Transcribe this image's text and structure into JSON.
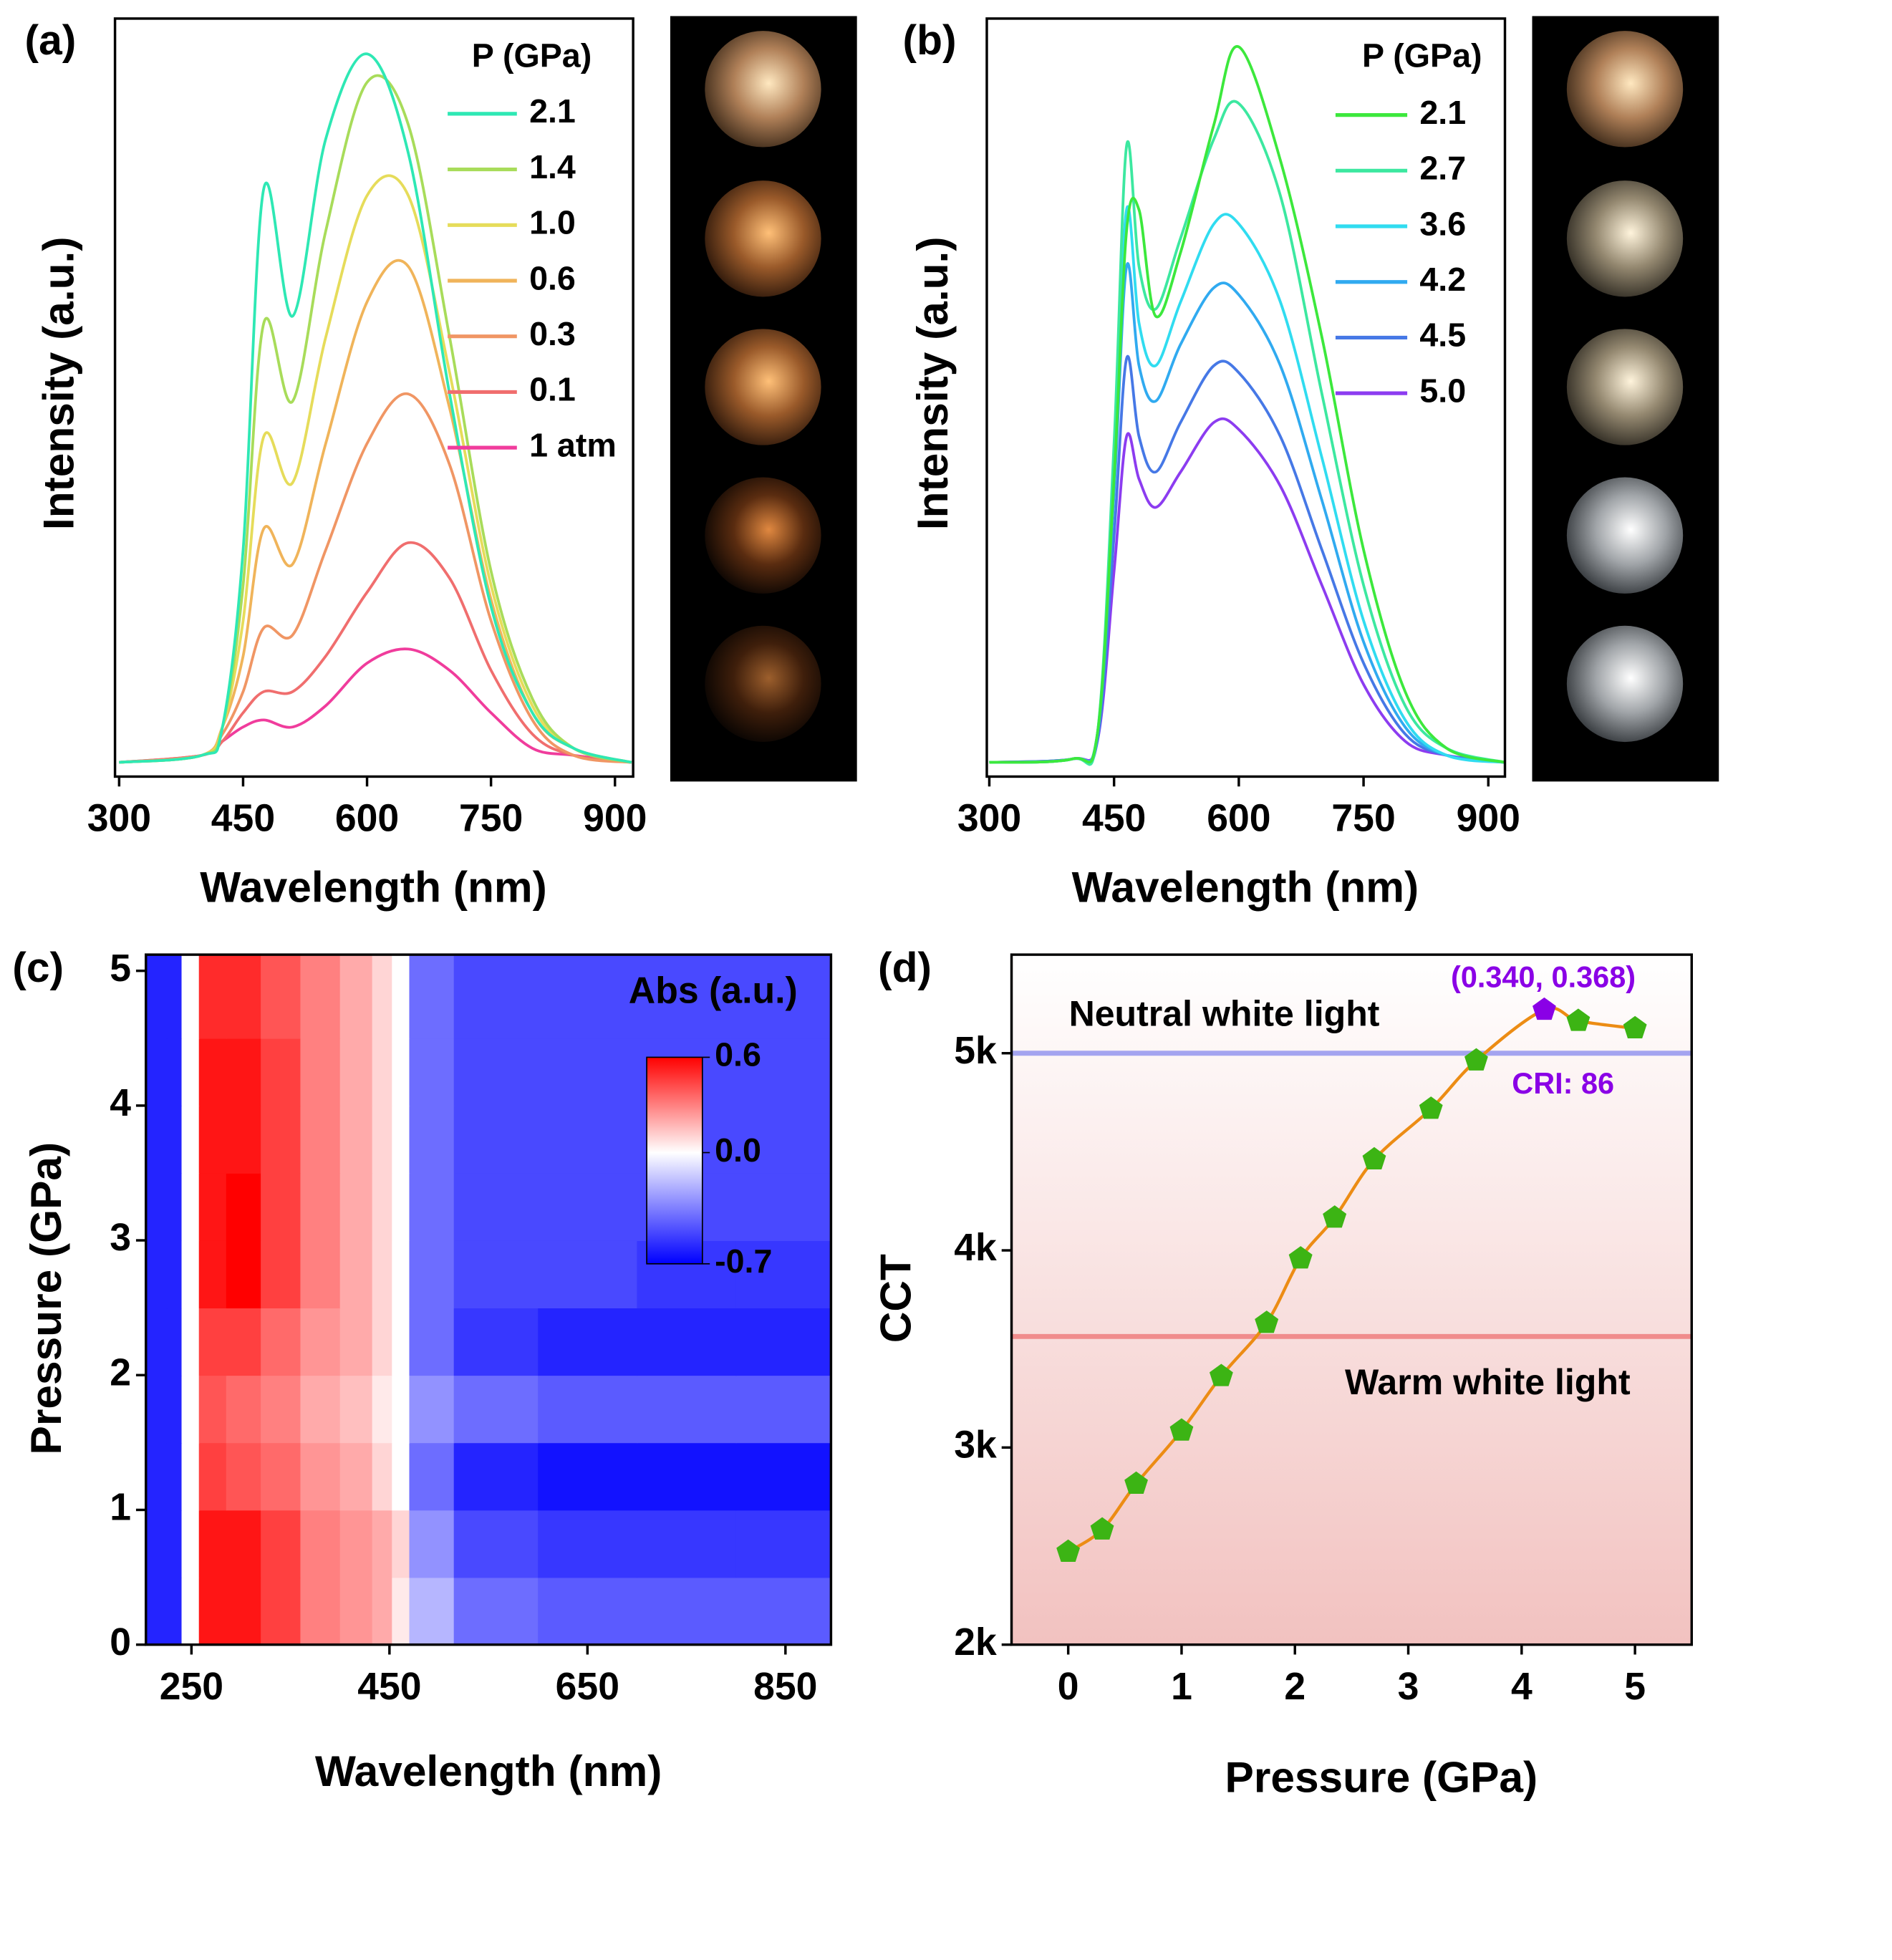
{
  "chart_data": [
    {
      "type": "line",
      "panel_label": "(a)",
      "x_label": "Wavelength (nm)",
      "y_label": "Intensity (a.u.)",
      "legend_title": "P (GPa)",
      "xlim": [
        295,
        922
      ],
      "xticks": [
        300,
        450,
        600,
        750,
        900
      ],
      "ylim": [
        -2,
        105
      ],
      "x": [
        300,
        400,
        425,
        450,
        475,
        510,
        550,
        600,
        650,
        700,
        750,
        800,
        850,
        920
      ],
      "series": [
        {
          "name": "2.1",
          "color": "#2ee8b4",
          "values": [
            0,
            1,
            5,
            30,
            81,
            63,
            88,
            100,
            86,
            52,
            22,
            7,
            2,
            0
          ]
        },
        {
          "name": "1.4",
          "color": "#a8dc5a",
          "values": [
            0,
            1,
            5,
            25,
            62,
            51,
            75,
            96,
            90,
            60,
            27,
            9,
            2,
            0
          ]
        },
        {
          "name": "1.0",
          "color": "#e6dc5a",
          "values": [
            0,
            1,
            5,
            20,
            46,
            39.5,
            60,
            80,
            80,
            55,
            25,
            8,
            2,
            0
          ]
        },
        {
          "name": "0.6",
          "color": "#f0b45a",
          "values": [
            0,
            1,
            5,
            15,
            33,
            28,
            45,
            65,
            70,
            50,
            23,
            7,
            2,
            0
          ]
        },
        {
          "name": "0.3",
          "color": "#f09664",
          "values": [
            0,
            1,
            4,
            10,
            19,
            18,
            30,
            45,
            52,
            42,
            20,
            6,
            1,
            0
          ]
        },
        {
          "name": "0.1",
          "color": "#f06e6e",
          "values": [
            0,
            1,
            3,
            7,
            10,
            10,
            15,
            24,
            31,
            26,
            13,
            4,
            1,
            0
          ]
        },
        {
          "name": "1 atm",
          "color": "#f03c9c",
          "values": [
            0,
            1,
            3,
            5,
            6,
            5,
            8,
            14,
            16,
            13,
            7,
            2,
            1,
            0
          ]
        }
      ]
    },
    {
      "type": "line",
      "panel_label": "(b)",
      "x_label": "Wavelength (nm)",
      "y_label": "Intensity (a.u.)",
      "legend_title": "P (GPa)",
      "xlim": [
        297,
        920
      ],
      "xticks": [
        300,
        450,
        600,
        750,
        900
      ],
      "ylim": [
        -2,
        105
      ],
      "x": [
        300,
        400,
        430,
        450,
        465,
        480,
        500,
        530,
        570,
        600,
        650,
        700,
        750,
        800,
        850,
        920
      ],
      "series": [
        {
          "name": "2.1",
          "color": "#3ce83c",
          "values": [
            0,
            0.5,
            4,
            40,
            75,
            78,
            63,
            72,
            90,
            101,
            85,
            60,
            30,
            10,
            2,
            0
          ]
        },
        {
          "name": "2.7",
          "color": "#3ce8a0",
          "values": [
            0,
            0.5,
            4,
            45,
            87,
            70,
            64,
            74,
            88,
            93,
            80,
            52,
            25,
            8,
            2,
            0
          ]
        },
        {
          "name": "3.6",
          "color": "#30dcf0",
          "values": [
            0,
            0.5,
            4,
            42,
            78,
            62,
            56,
            65,
            76,
            76,
            65,
            43,
            20,
            6,
            1,
            0
          ]
        },
        {
          "name": "4.2",
          "color": "#30aaf0",
          "values": [
            0,
            0.5,
            4,
            38,
            70,
            56,
            51,
            59,
            67,
            66,
            56,
            37,
            17,
            5,
            1,
            0
          ]
        },
        {
          "name": "4.5",
          "color": "#4678e6",
          "values": [
            0,
            0.5,
            3,
            32,
            57,
            46,
            41,
            48,
            56,
            55,
            46,
            30,
            14,
            4,
            1,
            0
          ]
        },
        {
          "name": "5.0",
          "color": "#8c3cf0",
          "values": [
            0,
            0.5,
            3,
            27,
            46,
            40,
            36,
            41,
            48,
            47,
            39,
            25,
            11,
            3,
            1,
            0
          ]
        }
      ]
    },
    {
      "type": "heatmap",
      "panel_label": "(c)",
      "x_label": "Wavelength (nm)",
      "y_label": "Pressure (GPa)",
      "xlim": [
        204,
        896
      ],
      "xticks": [
        250,
        450,
        650,
        850
      ],
      "ylim": [
        0,
        5.12
      ],
      "yticks": [
        0,
        1,
        2,
        3,
        4,
        5
      ],
      "x": [
        215,
        235,
        245,
        270,
        300,
        340,
        380,
        420,
        445,
        460,
        480,
        550,
        650,
        750,
        850
      ],
      "y": [
        0.25,
        0.75,
        1.25,
        1.75,
        2.25,
        2.75,
        3.25,
        3.75,
        4.25,
        4.75
      ],
      "z": [
        [
          -0.6,
          -0.6,
          0,
          0.55,
          0.55,
          0.45,
          0.3,
          0.25,
          0.2,
          0.05,
          -0.2,
          -0.4,
          -0.45,
          -0.45,
          -0.45
        ],
        [
          -0.6,
          -0.6,
          0,
          0.55,
          0.55,
          0.45,
          0.3,
          0.25,
          0.2,
          0.1,
          -0.3,
          -0.5,
          -0.55,
          -0.55,
          -0.55
        ],
        [
          -0.6,
          -0.6,
          0,
          0.45,
          0.4,
          0.35,
          0.25,
          0.2,
          0.1,
          0,
          -0.4,
          -0.6,
          -0.65,
          -0.65,
          -0.65
        ],
        [
          -0.6,
          -0.6,
          0,
          0.4,
          0.35,
          0.3,
          0.2,
          0.15,
          0.05,
          0,
          -0.3,
          -0.4,
          -0.45,
          -0.45,
          -0.45
        ],
        [
          -0.6,
          -0.6,
          0,
          0.45,
          0.45,
          0.35,
          0.25,
          0.2,
          0.1,
          0,
          -0.4,
          -0.55,
          -0.6,
          -0.6,
          -0.6
        ],
        [
          -0.6,
          -0.6,
          0,
          0.55,
          0.6,
          0.45,
          0.3,
          0.2,
          0.1,
          0,
          -0.4,
          -0.5,
          -0.5,
          -0.55,
          -0.55
        ],
        [
          -0.6,
          -0.6,
          0,
          0.55,
          0.6,
          0.45,
          0.3,
          0.2,
          0.1,
          0,
          -0.4,
          -0.5,
          -0.5,
          -0.5,
          -0.5
        ],
        [
          -0.6,
          -0.6,
          0,
          0.55,
          0.55,
          0.45,
          0.3,
          0.2,
          0.1,
          0,
          -0.4,
          -0.5,
          -0.5,
          -0.5,
          -0.5
        ],
        [
          -0.6,
          -0.6,
          0,
          0.55,
          0.55,
          0.45,
          0.3,
          0.2,
          0.1,
          0,
          -0.4,
          -0.5,
          -0.5,
          -0.5,
          -0.5
        ],
        [
          -0.6,
          -0.6,
          0,
          0.5,
          0.5,
          0.4,
          0.3,
          0.2,
          0.1,
          0,
          -0.4,
          -0.5,
          -0.5,
          -0.5,
          -0.5
        ]
      ],
      "colorbar": {
        "title": "Abs (a.u.)",
        "range": [
          -0.7,
          0.6
        ],
        "ticks": [
          0.6,
          {
            "value": 0,
            "label": "0.0"
          },
          -0.7
        ],
        "colors": [
          "#0000ff",
          "#ffffff",
          "#ff0000"
        ]
      }
    },
    {
      "type": "scatter",
      "panel_label": "(d)",
      "x_label": "Pressure (GPa)",
      "y_label": "CCT",
      "xlim": [
        -0.5,
        5.5
      ],
      "xticks": [
        0,
        1,
        2,
        3,
        4,
        5
      ],
      "ylim": [
        2000,
        5500
      ],
      "yticks": [
        {
          "value": 2000,
          "label": "2k"
        },
        {
          "value": 3000,
          "label": "3k"
        },
        {
          "value": 4000,
          "label": "4k"
        },
        {
          "value": 5000,
          "label": "5k"
        }
      ],
      "x": [
        0,
        0.3,
        0.6,
        1.0,
        1.35,
        1.75,
        2.05,
        2.35,
        2.7,
        3.2,
        3.6,
        4.2,
        4.5,
        5.0
      ],
      "y": [
        2471,
        2584,
        2816,
        3086,
        3362,
        3632,
        3959,
        4166,
        4461,
        4718,
        4963,
        5220,
        5164,
        5126
      ],
      "colors": [
        "#3cb414",
        "#3cb414",
        "#3cb414",
        "#3cb414",
        "#3cb414",
        "#3cb414",
        "#3cb414",
        "#3cb414",
        "#3cb414",
        "#3cb414",
        "#3cb414",
        "#8a00e6",
        "#3cb414",
        "#3cb414"
      ],
      "fit_color": "#ec8c14",
      "reference_lines": [
        {
          "value": 5000,
          "label": "Neutral white light",
          "color": "#a4a4f0"
        },
        {
          "value": 3563,
          "label": "Warm white light",
          "color": "#f08c8c"
        }
      ],
      "annotations": [
        {
          "text": "(0.340, 0.368)",
          "color": "#8a00e6"
        },
        {
          "text": "CRI: 86",
          "color": "#8a00e6"
        }
      ]
    }
  ]
}
